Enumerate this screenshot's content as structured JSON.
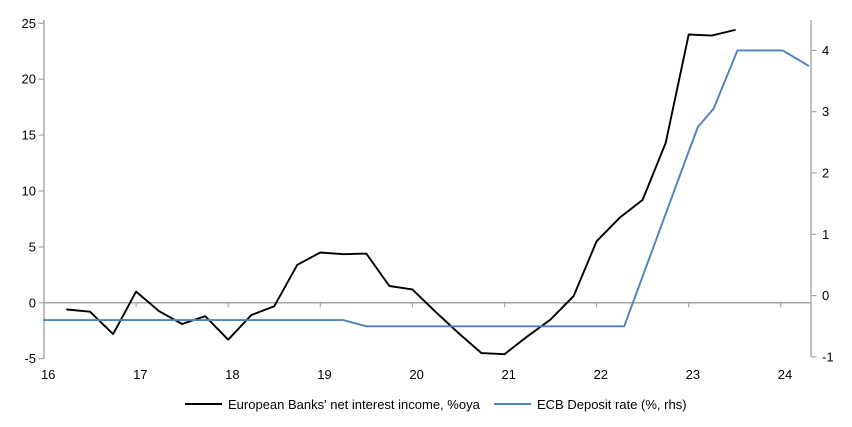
{
  "chart_data": {
    "type": "line",
    "title": "",
    "x_axis": {
      "tick_labels": [
        "16",
        "17",
        "18",
        "19",
        "20",
        "21",
        "22",
        "23",
        "24"
      ],
      "tick_values": [
        16,
        17,
        18,
        19,
        20,
        21,
        22,
        23,
        24
      ],
      "range": [
        16,
        24.33
      ]
    },
    "y_axis_left": {
      "label": "%oya",
      "tick_values": [
        25,
        20,
        15,
        10,
        5,
        0,
        -5
      ],
      "range": [
        -5,
        25.3
      ]
    },
    "y_axis_right": {
      "label": "%",
      "tick_values": [
        4,
        3,
        2,
        1,
        0,
        -1
      ],
      "range": [
        -1,
        4.6
      ]
    },
    "gridlines": {
      "zero_line_only": true
    },
    "legend_position": "bottom",
    "series": [
      {
        "name": "European Banks' net interest income, %oya",
        "axis": "left",
        "color": "#000000",
        "x": [
          16.25,
          16.5,
          16.75,
          17.0,
          17.25,
          17.5,
          17.75,
          18.0,
          18.25,
          18.5,
          18.75,
          19.0,
          19.25,
          19.5,
          19.75,
          20.0,
          20.25,
          20.5,
          20.75,
          21.0,
          21.25,
          21.5,
          21.75,
          22.0,
          22.25,
          22.5,
          22.75,
          23.0,
          23.25,
          23.5
        ],
        "y": [
          -0.6,
          -0.8,
          -2.8,
          1.0,
          -0.75,
          -1.9,
          -1.2,
          -3.3,
          -1.1,
          -0.3,
          3.4,
          4.5,
          4.35,
          4.4,
          1.5,
          1.2,
          -0.8,
          -2.7,
          -4.5,
          -4.6,
          -3.0,
          -1.5,
          0.6,
          5.5,
          7.6,
          9.2,
          14.3,
          24.0,
          23.9,
          24.4
        ]
      },
      {
        "name": "ECB Deposit rate (%, rhs)",
        "axis": "right",
        "color": "#4e81bd",
        "x": [
          16.0,
          19.25,
          19.5,
          22.3,
          23.0,
          23.1,
          23.27,
          23.53,
          24.02,
          24.3
        ],
        "y": [
          -0.4,
          -0.4,
          -0.5,
          -0.5,
          2.35,
          2.75,
          3.05,
          4.0,
          4.0,
          3.75
        ]
      }
    ]
  },
  "colors": {
    "series_nii": "#000000",
    "series_ecb": "#4e81bd",
    "axis": "#a6a6a6",
    "text": "#000000",
    "background": "#ffffff"
  }
}
